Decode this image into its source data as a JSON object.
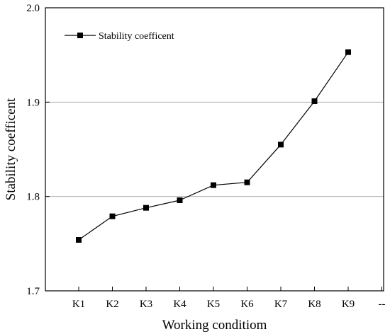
{
  "chart_data": {
    "type": "line",
    "categories": [
      "K1",
      "K2",
      "K3",
      "K4",
      "K5",
      "K6",
      "K7",
      "K8",
      "K9"
    ],
    "extra_tick_label": "--",
    "series": [
      {
        "name": "Stability coefficent",
        "values": [
          1.754,
          1.779,
          1.788,
          1.796,
          1.812,
          1.815,
          1.855,
          1.901,
          1.953
        ],
        "color": "#000000",
        "marker": "square"
      }
    ],
    "xlabel": "Working conditiom",
    "ylabel": "Stability coefficent",
    "ylim": [
      1.7,
      2.0
    ],
    "yticks": [
      1.7,
      1.8,
      1.9,
      2.0
    ],
    "ytick_labels": [
      "1.7",
      "1.8",
      "1.9",
      "2.0"
    ],
    "grid_y": [
      1.8,
      1.9
    ],
    "legend_position": "top-left"
  }
}
